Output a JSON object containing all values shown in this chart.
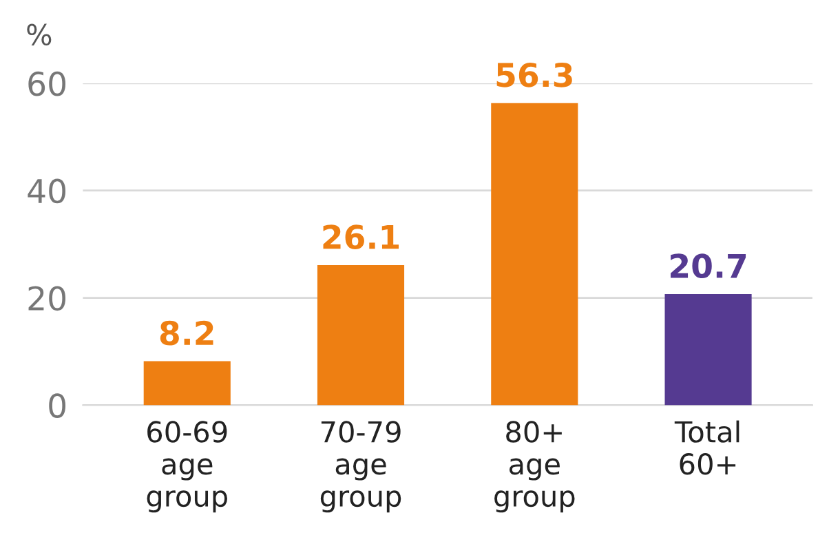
{
  "chart_data": {
    "type": "bar",
    "ylabel": "%",
    "categories": [
      "60-69\nage\ngroup",
      "70-79\nage\ngroup",
      "80+\nage\ngroup",
      "Total\n60+"
    ],
    "values": [
      8.2,
      26.1,
      56.3,
      20.7
    ],
    "colors": [
      "#ee7f12",
      "#ee7f12",
      "#ee7f12",
      "#553a91"
    ],
    "data_labels": true,
    "ylim": [
      0,
      60
    ],
    "yticks": [
      0,
      20,
      40,
      60
    ],
    "grid": "y"
  }
}
